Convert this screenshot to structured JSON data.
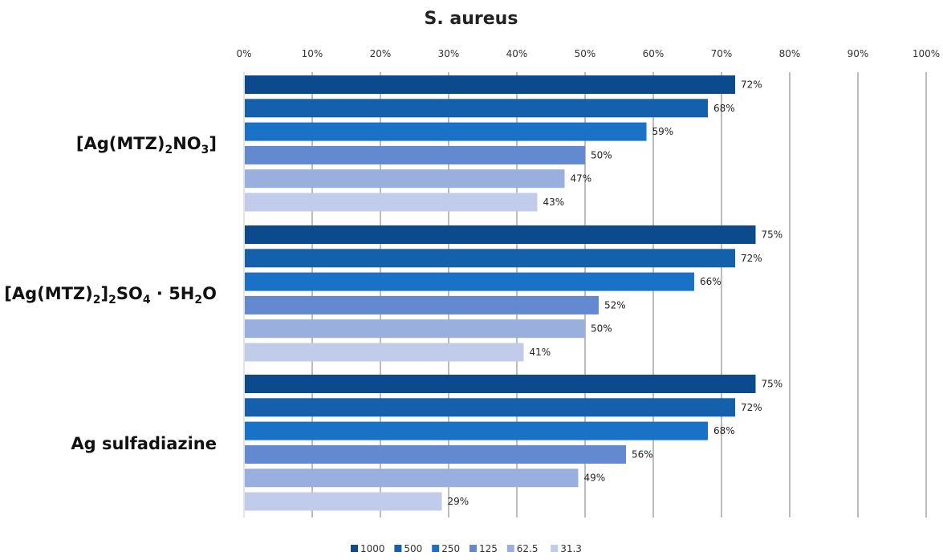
{
  "chart_data": {
    "type": "bar",
    "orientation": "horizontal",
    "title": "S. aureus",
    "xlim": [
      0,
      100
    ],
    "x_ticks": [
      "0%",
      "10%",
      "20%",
      "30%",
      "40%",
      "50%",
      "60%",
      "70%",
      "80%",
      "90%",
      "100%"
    ],
    "grid": "vertical",
    "legend_position": "bottom",
    "categories": [
      {
        "main": "[Ag(MTZ)",
        "sub1": "2",
        "mid": "NO",
        "sub2": "3",
        "end": "]"
      },
      {
        "main": "[Ag(MTZ)",
        "sub1": "2",
        "mid": "]",
        "sub2": "2",
        "mid2": "SO",
        "sub3": "4",
        "mid3": " · 5H",
        "sub4": "2",
        "end": "O"
      },
      {
        "main": "Ag sulfadiazine"
      }
    ],
    "series": [
      {
        "name": "1000",
        "color": "#0b4a8c",
        "values": [
          72,
          75,
          75
        ]
      },
      {
        "name": "500",
        "color": "#1460ad",
        "values": [
          68,
          72,
          72
        ]
      },
      {
        "name": "250",
        "color": "#1a72c6",
        "values": [
          59,
          66,
          68
        ]
      },
      {
        "name": "125",
        "color": "#6389d1",
        "values": [
          50,
          52,
          56
        ]
      },
      {
        "name": "62.5",
        "color": "#99b0de",
        "values": [
          47,
          50,
          49
        ]
      },
      {
        "name": "31.3",
        "color": "#c0cce9",
        "values": [
          43,
          41,
          29
        ]
      }
    ],
    "value_suffix": "%"
  }
}
